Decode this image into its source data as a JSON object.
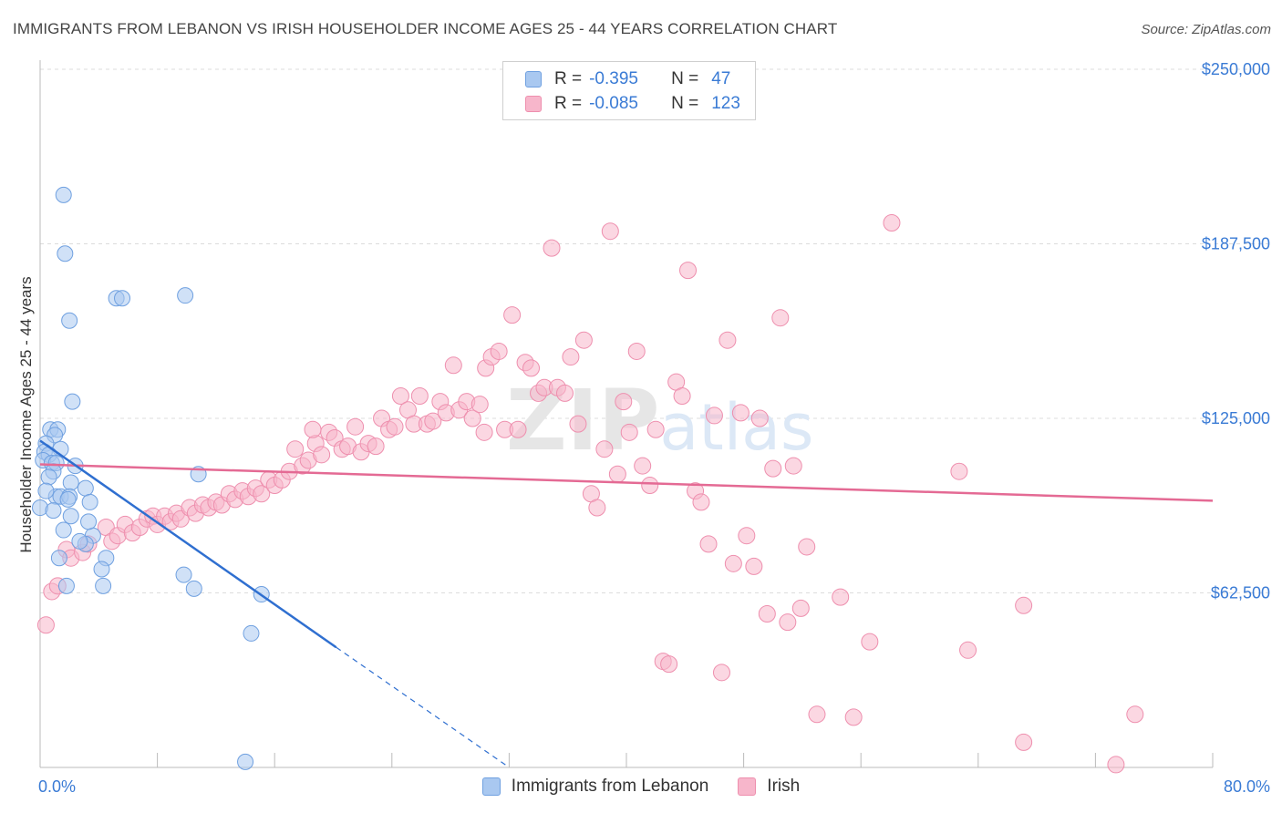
{
  "title": "IMMIGRANTS FROM LEBANON VS IRISH HOUSEHOLDER INCOME AGES 25 - 44 YEARS CORRELATION CHART",
  "source": "Source: ZipAtlas.com",
  "legend": {
    "rows": [
      {
        "r_label": "R =",
        "r_value": "-0.395",
        "n_label": "N =",
        "n_value": "47"
      },
      {
        "r_label": "R =",
        "r_value": "-0.085",
        "n_label": "N =",
        "n_value": "123"
      }
    ]
  },
  "colors": {
    "blue_fill": "#a9c8f0",
    "blue_stroke": "#6fa0e0",
    "blue_line": "#2f6fd0",
    "pink_fill": "#f7b6cb",
    "pink_stroke": "#ee8fae",
    "pink_line": "#e46a94",
    "accent_text": "#3a7bd5",
    "grid": "#dcdcdc"
  },
  "watermark": {
    "zip": "ZIP",
    "atlas": "atlas"
  },
  "chart_data": {
    "type": "scatter",
    "title": "IMMIGRANTS FROM LEBANON VS IRISH HOUSEHOLDER INCOME AGES 25 - 44 YEARS CORRELATION CHART",
    "xlabel": "",
    "ylabel": "Householder Income Ages 25 - 44 years",
    "xlim": [
      0,
      80
    ],
    "ylim": [
      0,
      262500
    ],
    "x_tick_labels": [
      "0.0%",
      "80.0%"
    ],
    "y_ticks": [
      62500,
      125000,
      187500,
      250000
    ],
    "y_tick_labels": [
      "$62,500",
      "$125,000",
      "$187,500",
      "$250,000"
    ],
    "grid": true,
    "legend_position": "bottom",
    "series": [
      {
        "name": "Immigrants from Lebanon",
        "r": -0.395,
        "n": 47,
        "trend": {
          "x0": 0,
          "y0": 117000,
          "x1": 20.2,
          "y1": 43000,
          "dash_x1": 32,
          "dash_y1": 0
        },
        "points": [
          [
            1.6,
            205000
          ],
          [
            1.7,
            184000
          ],
          [
            5.2,
            168000
          ],
          [
            5.6,
            168000
          ],
          [
            9.9,
            169000
          ],
          [
            2.0,
            160000
          ],
          [
            2.2,
            131000
          ],
          [
            0.7,
            121000
          ],
          [
            1.2,
            121000
          ],
          [
            1.0,
            119000
          ],
          [
            0.4,
            116000
          ],
          [
            0.3,
            113000
          ],
          [
            1.4,
            114000
          ],
          [
            0.6,
            112000
          ],
          [
            0.2,
            110000
          ],
          [
            0.8,
            109000
          ],
          [
            1.1,
            109000
          ],
          [
            2.4,
            108000
          ],
          [
            0.9,
            106000
          ],
          [
            10.8,
            105000
          ],
          [
            2.1,
            102000
          ],
          [
            3.1,
            100000
          ],
          [
            1.1,
            97000
          ],
          [
            1.4,
            97000
          ],
          [
            2.0,
            97000
          ],
          [
            3.4,
            95000
          ],
          [
            0.0,
            93000
          ],
          [
            0.9,
            92000
          ],
          [
            2.1,
            90000
          ],
          [
            1.6,
            85000
          ],
          [
            3.6,
            83000
          ],
          [
            3.1,
            80000
          ],
          [
            4.5,
            75000
          ],
          [
            1.3,
            75000
          ],
          [
            4.2,
            71000
          ],
          [
            9.8,
            69000
          ],
          [
            1.8,
            65000
          ],
          [
            4.3,
            65000
          ],
          [
            10.5,
            64000
          ],
          [
            15.1,
            62000
          ],
          [
            14.4,
            48000
          ],
          [
            14.0,
            2000
          ],
          [
            0.6,
            104000
          ],
          [
            1.9,
            96000
          ],
          [
            0.4,
            99000
          ],
          [
            2.7,
            81000
          ],
          [
            3.3,
            88000
          ]
        ]
      },
      {
        "name": "Irish",
        "r": -0.085,
        "n": 123,
        "trend": {
          "x0": 0,
          "y0": 108500,
          "x1": 80,
          "y1": 95500
        },
        "points": [
          [
            0.4,
            51000
          ],
          [
            0.8,
            63000
          ],
          [
            1.2,
            65000
          ],
          [
            1.8,
            78000
          ],
          [
            2.1,
            75000
          ],
          [
            2.9,
            77000
          ],
          [
            3.3,
            80000
          ],
          [
            4.5,
            86000
          ],
          [
            4.9,
            81000
          ],
          [
            5.3,
            83000
          ],
          [
            5.8,
            87000
          ],
          [
            6.3,
            84000
          ],
          [
            6.8,
            86000
          ],
          [
            7.3,
            89000
          ],
          [
            7.7,
            90000
          ],
          [
            8.0,
            87000
          ],
          [
            8.5,
            90000
          ],
          [
            8.9,
            88000
          ],
          [
            9.3,
            91000
          ],
          [
            9.6,
            89000
          ],
          [
            10.2,
            93000
          ],
          [
            10.6,
            91000
          ],
          [
            11.1,
            94000
          ],
          [
            11.5,
            93000
          ],
          [
            12.0,
            95000
          ],
          [
            12.4,
            94000
          ],
          [
            12.9,
            98000
          ],
          [
            13.3,
            96000
          ],
          [
            13.8,
            99000
          ],
          [
            14.2,
            97000
          ],
          [
            14.7,
            100000
          ],
          [
            15.1,
            98000
          ],
          [
            15.6,
            103000
          ],
          [
            16.0,
            101000
          ],
          [
            16.5,
            103000
          ],
          [
            17.0,
            106000
          ],
          [
            17.4,
            114000
          ],
          [
            17.9,
            108000
          ],
          [
            18.3,
            110000
          ],
          [
            18.8,
            116000
          ],
          [
            19.2,
            112000
          ],
          [
            19.7,
            120000
          ],
          [
            20.1,
            118000
          ],
          [
            20.6,
            114000
          ],
          [
            21.0,
            115000
          ],
          [
            21.5,
            122000
          ],
          [
            21.9,
            113000
          ],
          [
            22.4,
            116000
          ],
          [
            22.9,
            115000
          ],
          [
            23.3,
            125000
          ],
          [
            23.8,
            121000
          ],
          [
            24.2,
            122000
          ],
          [
            24.6,
            133000
          ],
          [
            25.1,
            128000
          ],
          [
            25.5,
            123000
          ],
          [
            25.9,
            133000
          ],
          [
            26.4,
            123000
          ],
          [
            26.8,
            124000
          ],
          [
            27.3,
            131000
          ],
          [
            27.7,
            127000
          ],
          [
            28.2,
            144000
          ],
          [
            28.6,
            128000
          ],
          [
            29.1,
            131000
          ],
          [
            29.5,
            125000
          ],
          [
            30.0,
            130000
          ],
          [
            30.4,
            143000
          ],
          [
            30.8,
            147000
          ],
          [
            31.3,
            149000
          ],
          [
            31.7,
            121000
          ],
          [
            32.2,
            162000
          ],
          [
            32.6,
            121000
          ],
          [
            33.1,
            145000
          ],
          [
            33.5,
            143000
          ],
          [
            34.0,
            134000
          ],
          [
            34.4,
            136000
          ],
          [
            34.9,
            186000
          ],
          [
            35.3,
            136000
          ],
          [
            35.8,
            134000
          ],
          [
            36.2,
            147000
          ],
          [
            36.7,
            123000
          ],
          [
            37.1,
            153000
          ],
          [
            37.6,
            98000
          ],
          [
            38.0,
            93000
          ],
          [
            38.5,
            114000
          ],
          [
            38.9,
            192000
          ],
          [
            39.4,
            105000
          ],
          [
            39.8,
            131000
          ],
          [
            40.2,
            120000
          ],
          [
            40.7,
            149000
          ],
          [
            41.1,
            108000
          ],
          [
            41.6,
            101000
          ],
          [
            42.0,
            121000
          ],
          [
            42.5,
            38000
          ],
          [
            42.9,
            37000
          ],
          [
            43.4,
            138000
          ],
          [
            43.8,
            133000
          ],
          [
            44.2,
            178000
          ],
          [
            44.7,
            99000
          ],
          [
            45.1,
            95000
          ],
          [
            45.6,
            80000
          ],
          [
            46.0,
            126000
          ],
          [
            46.5,
            34000
          ],
          [
            46.9,
            153000
          ],
          [
            47.3,
            73000
          ],
          [
            47.8,
            127000
          ],
          [
            48.2,
            83000
          ],
          [
            48.7,
            72000
          ],
          [
            49.1,
            125000
          ],
          [
            49.6,
            55000
          ],
          [
            50.0,
            107000
          ],
          [
            50.5,
            161000
          ],
          [
            51.0,
            52000
          ],
          [
            51.4,
            108000
          ],
          [
            51.9,
            57000
          ],
          [
            52.3,
            79000
          ],
          [
            53.0,
            19000
          ],
          [
            54.6,
            61000
          ],
          [
            55.5,
            18000
          ],
          [
            56.6,
            45000
          ],
          [
            58.1,
            195000
          ],
          [
            62.7,
            106000
          ],
          [
            63.3,
            42000
          ],
          [
            67.1,
            9000
          ],
          [
            67.1,
            58000
          ],
          [
            73.4,
            1000
          ],
          [
            74.7,
            19000
          ],
          [
            18.6,
            121000
          ],
          [
            30.3,
            120000
          ]
        ]
      }
    ]
  }
}
